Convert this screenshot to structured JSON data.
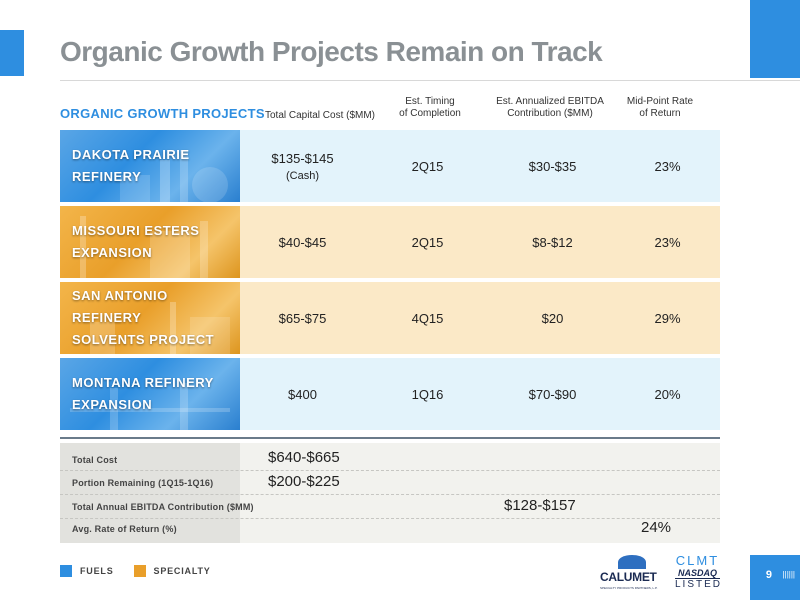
{
  "slide": {
    "title": "Organic Growth Projects Remain on Track",
    "page_number": "9",
    "page_ticks": "||||||"
  },
  "table": {
    "headers": {
      "projects": "ORGANIC GROWTH PROJECTS",
      "capital_cost": "Total Capital Cost ($MM)",
      "timing_1": "Est. Timing",
      "timing_2": "of Completion",
      "ebitda_1": "Est. Annualized EBITDA",
      "ebitda_2": "Contribution ($MM)",
      "return_1": "Mid-Point Rate",
      "return_2": "of Return"
    },
    "rows": [
      {
        "name_1": "DAKOTA PRAIRIE",
        "name_2": "REFINERY",
        "capital_cost": "$135-$145",
        "capital_note": "(Cash)",
        "timing": "2Q15",
        "ebitda": "$30-$35",
        "return": "23%",
        "category": "Fuels"
      },
      {
        "name_1": "MISSOURI ESTERS",
        "name_2": "EXPANSION",
        "capital_cost": "$40-$45",
        "capital_note": "",
        "timing": "2Q15",
        "ebitda": "$8-$12",
        "return": "23%",
        "category": "Specialty"
      },
      {
        "name_1": "SAN ANTONIO REFINERY",
        "name_2": "SOLVENTS PROJECT",
        "capital_cost": "$65-$75",
        "capital_note": "",
        "timing": "4Q15",
        "ebitda": "$20",
        "return": "29%",
        "category": "Specialty"
      },
      {
        "name_1": "MONTANA REFINERY",
        "name_2": "EXPANSION",
        "capital_cost": "$400",
        "capital_note": "",
        "timing": "1Q16",
        "ebitda": "$70-$90",
        "return": "20%",
        "category": "Fuels"
      }
    ]
  },
  "summary": {
    "total_cost_label": "Total Cost",
    "total_cost_value": "$640-$665",
    "remaining_label": "Portion Remaining (1Q15-1Q16)",
    "remaining_value": "$200-$225",
    "ebitda_label": "Total Annual EBITDA Contribution ($MM)",
    "ebitda_value": "$128-$157",
    "return_label": "Avg. Rate of Return (%)",
    "return_value": "24%"
  },
  "legend": {
    "fuels": "FUELS",
    "specialty": "SPECIALTY"
  },
  "colors": {
    "fuels": "#2e8ee0",
    "specialty": "#e99f2a",
    "fuels_row_bg": "#e3f3fb",
    "specialty_row_bg": "#fbe9c7",
    "title": "#8a9094"
  },
  "logos": {
    "company": "CALUMET",
    "company_tagline": "SPECIALTY PRODUCTS PARTNERS, L.P.",
    "ticker": "CLMT",
    "exchange": "NASDAQ",
    "listed": "LISTED"
  }
}
